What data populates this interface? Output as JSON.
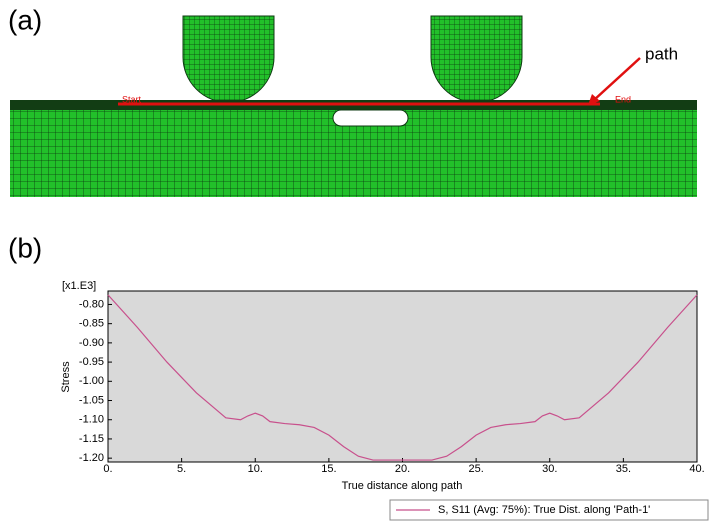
{
  "panels": [
    "(a)",
    "(b)"
  ],
  "mesh": {
    "annotation": "path",
    "start_label": "Start",
    "end_label": "End"
  },
  "chart_data": {
    "type": "line",
    "y_multiplier": "[x1.E3]",
    "ylabel": "Stress",
    "xlabel": "True distance along path",
    "x": [
      0,
      2,
      4,
      6,
      8,
      9,
      9.5,
      10,
      10.5,
      11,
      12,
      13,
      14,
      15,
      16,
      17,
      18,
      19,
      20,
      21,
      22,
      23,
      24,
      25,
      26,
      27,
      28,
      29,
      29.5,
      30,
      30.5,
      31,
      32,
      34,
      36,
      38,
      40
    ],
    "series": [
      {
        "name": "S, S11 (Avg: 75%): True Dist. along 'Path-1'",
        "color": "#c8508c",
        "values": [
          -0.775,
          -0.86,
          -0.95,
          -1.03,
          -1.095,
          -1.1,
          -1.09,
          -1.083,
          -1.09,
          -1.105,
          -1.11,
          -1.113,
          -1.12,
          -1.14,
          -1.17,
          -1.195,
          -1.205,
          -1.205,
          -1.205,
          -1.205,
          -1.205,
          -1.195,
          -1.17,
          -1.14,
          -1.12,
          -1.113,
          -1.11,
          -1.105,
          -1.09,
          -1.083,
          -1.09,
          -1.1,
          -1.095,
          -1.03,
          -0.95,
          -0.86,
          -0.775
        ]
      }
    ],
    "xlim": [
      0,
      40
    ],
    "xticks": [
      {
        "value": 0,
        "label": "0."
      },
      {
        "value": 5,
        "label": "5."
      },
      {
        "value": 10,
        "label": "10."
      },
      {
        "value": 15,
        "label": "15."
      },
      {
        "value": 20,
        "label": "20."
      },
      {
        "value": 25,
        "label": "25."
      },
      {
        "value": 30,
        "label": "30."
      },
      {
        "value": 35,
        "label": "35."
      },
      {
        "value": 40,
        "label": "40."
      }
    ],
    "ylim": [
      -1.21,
      -0.765
    ],
    "yticks": [
      {
        "value": -0.8,
        "label": "-0.80"
      },
      {
        "value": -0.85,
        "label": "-0.85"
      },
      {
        "value": -0.9,
        "label": "-0.90"
      },
      {
        "value": -0.95,
        "label": "-0.95"
      },
      {
        "value": -1.0,
        "label": "-1.00"
      },
      {
        "value": -1.05,
        "label": "-1.05"
      },
      {
        "value": -1.1,
        "label": "-1.10"
      },
      {
        "value": -1.15,
        "label": "-1.15"
      },
      {
        "value": -1.2,
        "label": "-1.20"
      }
    ],
    "background": "#d9d9d9",
    "legend": "bottom-right"
  }
}
